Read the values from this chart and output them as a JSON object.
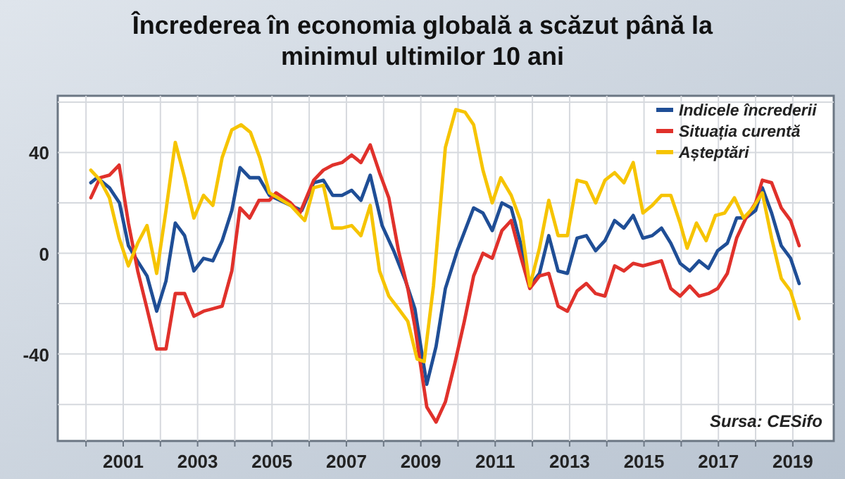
{
  "chart_data": {
    "type": "line",
    "title": "Încrederea în economia globală a scăzut până la\nminimul ultimilor 10 ani",
    "xlim": [
      1999.24,
      2020.1
    ],
    "xticks": [
      {
        "value": 2000,
        "label": null
      },
      2001,
      {
        "value": 2002,
        "label": null
      },
      2003,
      {
        "value": 2004,
        "label": null
      },
      2005,
      {
        "value": 2006,
        "label": null
      },
      2007,
      {
        "value": 2008,
        "label": null
      },
      2009,
      {
        "value": 2010,
        "label": null
      },
      2011,
      {
        "value": 2012,
        "label": null
      },
      2013,
      {
        "value": 2014,
        "label": null
      },
      2015,
      {
        "value": 2016,
        "label": null
      },
      2017,
      {
        "value": 2018,
        "label": null
      },
      2019
    ],
    "ylim": [
      -74.5,
      62.5
    ],
    "yticks": [
      {
        "value": -60,
        "label": null
      },
      -40,
      {
        "value": -20,
        "label": null
      },
      0,
      {
        "value": 20,
        "label": null
      },
      40,
      {
        "value": 60,
        "label": null
      }
    ],
    "grid": true,
    "legend": "top right",
    "line_style": "solid",
    "marker": "none",
    "annotations": [
      "Sursa: CESifo"
    ],
    "series": [
      {
        "name": "Indicele încrederii",
        "color": "#1f4e96",
        "x": [
          2000.13,
          2000.3,
          2000.63,
          2000.9,
          2001.14,
          2001.38,
          2001.64,
          2001.9,
          2002.15,
          2002.4,
          2002.65,
          2002.9,
          2003.16,
          2003.41,
          2003.66,
          2003.92,
          2004.14,
          2004.4,
          2004.65,
          2004.93,
          2005.5,
          2005.8,
          2006.12,
          2006.38,
          2006.63,
          2006.88,
          2007.14,
          2007.39,
          2007.64,
          2007.96,
          2008.27,
          2008.59,
          2008.84,
          2009.16,
          2009.41,
          2009.66,
          2009.98,
          2010.42,
          2010.67,
          2010.92,
          2011.18,
          2011.43,
          2011.68,
          2011.93,
          2012.19,
          2012.44,
          2012.69,
          2012.94,
          2013.2,
          2013.45,
          2013.7,
          2013.95,
          2014.21,
          2014.46,
          2014.71,
          2014.97,
          2015.22,
          2015.47,
          2015.72,
          2015.97,
          2016.23,
          2016.48,
          2016.73,
          2016.98,
          2017.24,
          2017.49,
          2017.74,
          2018,
          2018.18,
          2018.43,
          2018.69,
          2018.94,
          2019.17
        ],
        "values": [
          28,
          30,
          26,
          20,
          3,
          -3,
          -9,
          -23,
          -11,
          12,
          7,
          -7,
          -2,
          -3,
          5,
          17,
          34,
          30,
          30,
          23,
          19,
          17,
          28,
          29,
          23,
          23,
          25,
          21,
          31,
          11,
          1,
          -11,
          -22,
          -52,
          -37,
          -14,
          1,
          18,
          16,
          9,
          20,
          18,
          4,
          -13,
          -8,
          7,
          -7,
          -8,
          6,
          7,
          1,
          5,
          13,
          10,
          15,
          6,
          7,
          10,
          4,
          -4,
          -7,
          -3,
          -6,
          1,
          4,
          14,
          14,
          17,
          26,
          16,
          3,
          -2,
          -12
        ]
      },
      {
        "name": "Situația curentă",
        "color": "#e0312b",
        "x": [
          2000.13,
          2000.38,
          2000.63,
          2000.89,
          2001.14,
          2001.39,
          2001.64,
          2001.9,
          2002.15,
          2002.4,
          2002.65,
          2002.9,
          2003.16,
          2003.41,
          2003.66,
          2003.92,
          2004.14,
          2004.4,
          2004.65,
          2004.93,
          2005.11,
          2005.5,
          2005.75,
          2006.12,
          2006.38,
          2006.63,
          2006.88,
          2007.14,
          2007.39,
          2007.64,
          2007.89,
          2008.14,
          2008.4,
          2008.65,
          2008.84,
          2009.16,
          2009.41,
          2009.66,
          2009.91,
          2010.17,
          2010.42,
          2010.67,
          2010.92,
          2011.18,
          2011.43,
          2011.68,
          2011.93,
          2012.19,
          2012.44,
          2012.69,
          2012.94,
          2013.2,
          2013.45,
          2013.7,
          2013.95,
          2014.21,
          2014.46,
          2014.71,
          2014.97,
          2015.22,
          2015.47,
          2015.72,
          2015.97,
          2016.23,
          2016.48,
          2016.73,
          2016.98,
          2017.24,
          2017.49,
          2017.74,
          2018,
          2018.18,
          2018.43,
          2018.69,
          2018.94,
          2019.17
        ],
        "values": [
          22,
          30,
          31,
          35,
          12,
          -7,
          -22,
          -38,
          -38,
          -16,
          -16,
          -25,
          -23,
          -22,
          -21,
          -7,
          18,
          14,
          21,
          21,
          24,
          20,
          16,
          29,
          33,
          35,
          36,
          39,
          36,
          43,
          32,
          22,
          1,
          -14,
          -29,
          -61,
          -67,
          -59,
          -44,
          -27,
          -9,
          0,
          -2,
          9,
          13,
          -1,
          -14,
          -9,
          -8,
          -21,
          -23,
          -15,
          -12,
          -16,
          -17,
          -5,
          -7,
          -4,
          -5,
          -4,
          -3,
          -14,
          -17,
          -13,
          -17,
          -16,
          -14,
          -8,
          6,
          14,
          20,
          29,
          28,
          18,
          13,
          3
        ]
      },
      {
        "name": "Așteptări",
        "color": "#f6c400",
        "x": [
          2000.13,
          2000.38,
          2000.63,
          2000.89,
          2001.14,
          2001.39,
          2001.64,
          2001.9,
          2002.15,
          2002.4,
          2002.65,
          2002.9,
          2003.16,
          2003.41,
          2003.66,
          2003.92,
          2004.17,
          2004.42,
          2004.67,
          2004.93,
          2005.5,
          2005.88,
          2006.12,
          2006.38,
          2006.63,
          2006.88,
          2007.14,
          2007.39,
          2007.64,
          2007.89,
          2008.14,
          2008.4,
          2008.65,
          2008.9,
          2009.09,
          2009.34,
          2009.66,
          2009.94,
          2010.19,
          2010.42,
          2010.67,
          2010.92,
          2011.15,
          2011.43,
          2011.68,
          2011.93,
          2012.19,
          2012.44,
          2012.69,
          2012.94,
          2013.2,
          2013.45,
          2013.7,
          2013.95,
          2014.21,
          2014.46,
          2014.71,
          2014.97,
          2015.22,
          2015.47,
          2015.72,
          2015.97,
          2016.16,
          2016.41,
          2016.67,
          2016.92,
          2017.17,
          2017.43,
          2017.68,
          2017.93,
          2018.18,
          2018.43,
          2018.69,
          2018.94,
          2019.17
        ],
        "values": [
          33,
          29,
          22,
          6,
          -5,
          4,
          11,
          -8,
          17,
          44,
          30,
          14,
          23,
          19,
          38,
          49,
          51,
          48,
          38,
          24,
          19,
          13,
          26,
          27,
          10,
          10,
          11,
          7,
          19,
          -7,
          -17,
          -22,
          -27,
          -42,
          -43,
          -13,
          42,
          57,
          56,
          51,
          33,
          20,
          30,
          23,
          13,
          -13,
          2,
          21,
          7,
          7,
          29,
          28,
          20,
          29,
          32,
          28,
          36,
          16,
          19,
          23,
          23,
          12,
          2,
          12,
          5,
          15,
          16,
          22,
          14,
          18,
          24,
          6,
          -10,
          -15,
          -26
        ]
      }
    ]
  }
}
